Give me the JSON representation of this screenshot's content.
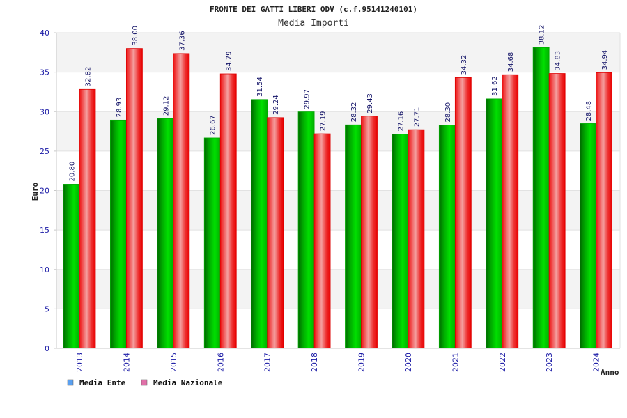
{
  "chart_data": {
    "type": "bar",
    "title": "FRONTE DEI GATTI LIBERI ODV (c.f.95141240101)",
    "subtitle": "Media Importi",
    "xlabel": "Anno",
    "ylabel": "Euro",
    "ylim": [
      0,
      40
    ],
    "yticks": [
      "0",
      "5",
      "10",
      "15",
      "20",
      "25",
      "30",
      "35",
      "40"
    ],
    "grid": true,
    "legend_position": "bottom-left",
    "categories": [
      "2013",
      "2014",
      "2015",
      "2016",
      "2017",
      "2018",
      "2019",
      "2020",
      "2021",
      "2022",
      "2023",
      "2024"
    ],
    "series": [
      {
        "name": "Media Ente",
        "color": "#00b000",
        "values": [
          20.8,
          28.93,
          29.12,
          26.67,
          31.54,
          29.97,
          28.32,
          27.16,
          28.3,
          31.62,
          38.12,
          28.48
        ],
        "labels": [
          "20.80",
          "28.93",
          "29.12",
          "26.67",
          "31.54",
          "29.97",
          "28.32",
          "27.16",
          "28.30",
          "31.62",
          "38.12",
          "28.48"
        ]
      },
      {
        "name": "Media Nazionale",
        "color": "#ee1111",
        "values": [
          32.82,
          38.0,
          37.36,
          34.79,
          29.24,
          27.19,
          29.43,
          27.71,
          34.32,
          34.68,
          34.83,
          34.94
        ],
        "labels": [
          "32.82",
          "38.00",
          "37.36",
          "34.79",
          "29.24",
          "27.19",
          "29.43",
          "27.71",
          "34.32",
          "34.68",
          "34.83",
          "34.94"
        ]
      }
    ],
    "legend_colors": [
      "#5aa0f0",
      "#e070a8"
    ]
  }
}
